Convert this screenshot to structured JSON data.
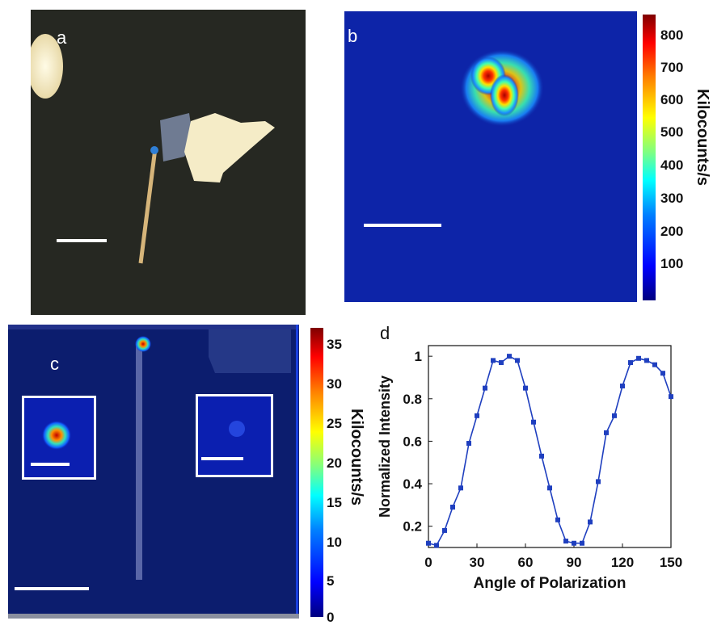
{
  "panel_a": {
    "label": "a"
  },
  "panel_b": {
    "label": "b",
    "colorbar": {
      "title": "Kilocounts/s",
      "ticks": [
        "800",
        "700",
        "600",
        "500",
        "400",
        "300",
        "200",
        "100"
      ]
    }
  },
  "panel_c": {
    "label": "c",
    "colorbar": {
      "title": "Kilocounts/s",
      "ticks": [
        "35",
        "30",
        "25",
        "20",
        "15",
        "10",
        "5",
        "0"
      ]
    }
  },
  "panel_d": {
    "label": "d"
  },
  "chart_data": {
    "type": "line",
    "title": "",
    "xlabel": "Angle of Polarization",
    "ylabel": "Normalized Intensity",
    "xlim": [
      0,
      150
    ],
    "ylim": [
      0.1,
      1.05
    ],
    "xticks": [
      0,
      30,
      60,
      90,
      120,
      150
    ],
    "yticks": [
      0.2,
      0.4,
      0.6,
      0.8,
      1
    ],
    "ytick_labels": [
      "0.2",
      "0.4",
      "0.6",
      "0.8",
      "1"
    ],
    "color": "#1f3fbf",
    "x": [
      0,
      5,
      10,
      15,
      20,
      25,
      30,
      35,
      40,
      45,
      50,
      55,
      60,
      65,
      70,
      75,
      80,
      85,
      90,
      95,
      100,
      105,
      110,
      115,
      120,
      125,
      130,
      135,
      140,
      145,
      150
    ],
    "y": [
      0.12,
      0.11,
      0.18,
      0.29,
      0.38,
      0.59,
      0.72,
      0.85,
      0.98,
      0.97,
      1.0,
      0.98,
      0.85,
      0.69,
      0.53,
      0.38,
      0.23,
      0.13,
      0.12,
      0.12,
      0.22,
      0.41,
      0.64,
      0.72,
      0.86,
      0.97,
      0.99,
      0.98,
      0.96,
      0.92,
      0.81
    ]
  }
}
